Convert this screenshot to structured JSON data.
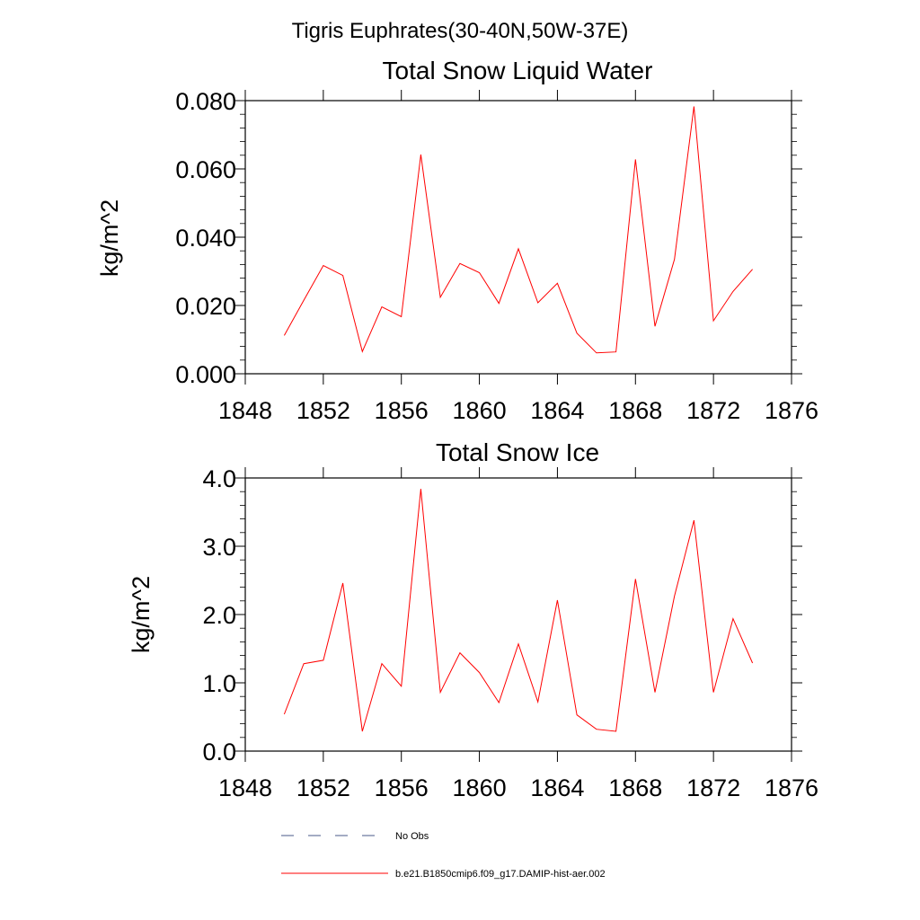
{
  "figure": {
    "main_title": "Tigris Euphrates(30-40N,50W-37E)"
  },
  "chart_data": [
    {
      "type": "line",
      "title": "Total Snow Liquid Water",
      "xlabel": "",
      "ylabel": "kg/m^2",
      "xlim": [
        1848,
        1876
      ],
      "ylim": [
        0.0,
        0.08
      ],
      "xticks": [
        1848,
        1852,
        1856,
        1860,
        1864,
        1868,
        1872,
        1876
      ],
      "xtick_labels": [
        "1848",
        "1852",
        "1856",
        "1860",
        "1864",
        "1868",
        "1872",
        "1876"
      ],
      "yticks": [
        0.0,
        0.02,
        0.04,
        0.06,
        0.08
      ],
      "ytick_labels": [
        "0.000",
        "0.020",
        "0.040",
        "0.060",
        "0.080"
      ],
      "grid": false,
      "x": [
        1850,
        1851,
        1852,
        1853,
        1854,
        1855,
        1856,
        1857,
        1858,
        1859,
        1860,
        1861,
        1862,
        1863,
        1864,
        1865,
        1866,
        1867,
        1868,
        1869,
        1870,
        1871,
        1872,
        1873,
        1874
      ],
      "series": [
        {
          "name": "b.e21.B1850cmip6.f09_g17.DAMIP-hist-aer.002",
          "color": "#ff0000",
          "values": [
            0.0112,
            0.0215,
            0.0317,
            0.0288,
            0.0065,
            0.0196,
            0.0167,
            0.0642,
            0.0224,
            0.0323,
            0.0296,
            0.0206,
            0.0366,
            0.0208,
            0.0265,
            0.0119,
            0.0061,
            0.0064,
            0.0628,
            0.0139,
            0.0335,
            0.0783,
            0.0155,
            0.0241,
            0.0306
          ]
        }
      ]
    },
    {
      "type": "line",
      "title": "Total Snow Ice",
      "xlabel": "",
      "ylabel": "kg/m^2",
      "xlim": [
        1848,
        1876
      ],
      "ylim": [
        0.0,
        4.0
      ],
      "xticks": [
        1848,
        1852,
        1856,
        1860,
        1864,
        1868,
        1872,
        1876
      ],
      "xtick_labels": [
        "1848",
        "1852",
        "1856",
        "1860",
        "1864",
        "1868",
        "1872",
        "1876"
      ],
      "yticks": [
        0.0,
        1.0,
        2.0,
        3.0,
        4.0
      ],
      "ytick_labels": [
        "0.0",
        "1.0",
        "2.0",
        "3.0",
        "4.0"
      ],
      "grid": false,
      "x": [
        1850,
        1851,
        1852,
        1853,
        1854,
        1855,
        1856,
        1857,
        1858,
        1859,
        1860,
        1861,
        1862,
        1863,
        1864,
        1865,
        1866,
        1867,
        1868,
        1869,
        1870,
        1871,
        1872,
        1873,
        1874
      ],
      "series": [
        {
          "name": "b.e21.B1850cmip6.f09_g17.DAMIP-hist-aer.002",
          "color": "#ff0000",
          "values": [
            0.54,
            1.28,
            1.33,
            2.46,
            0.29,
            1.28,
            0.95,
            3.84,
            0.86,
            1.44,
            1.15,
            0.71,
            1.57,
            0.72,
            2.21,
            0.53,
            0.32,
            0.29,
            2.52,
            0.86,
            2.27,
            3.38,
            0.86,
            1.94,
            1.29
          ]
        }
      ]
    }
  ],
  "legend": {
    "entries": [
      {
        "label": "No Obs",
        "color": "#4a5a8a",
        "style": "dashed"
      },
      {
        "label": "b.e21.B1850cmip6.f09_g17.DAMIP-hist-aer.002",
        "color": "#ff0000",
        "style": "solid"
      }
    ]
  }
}
